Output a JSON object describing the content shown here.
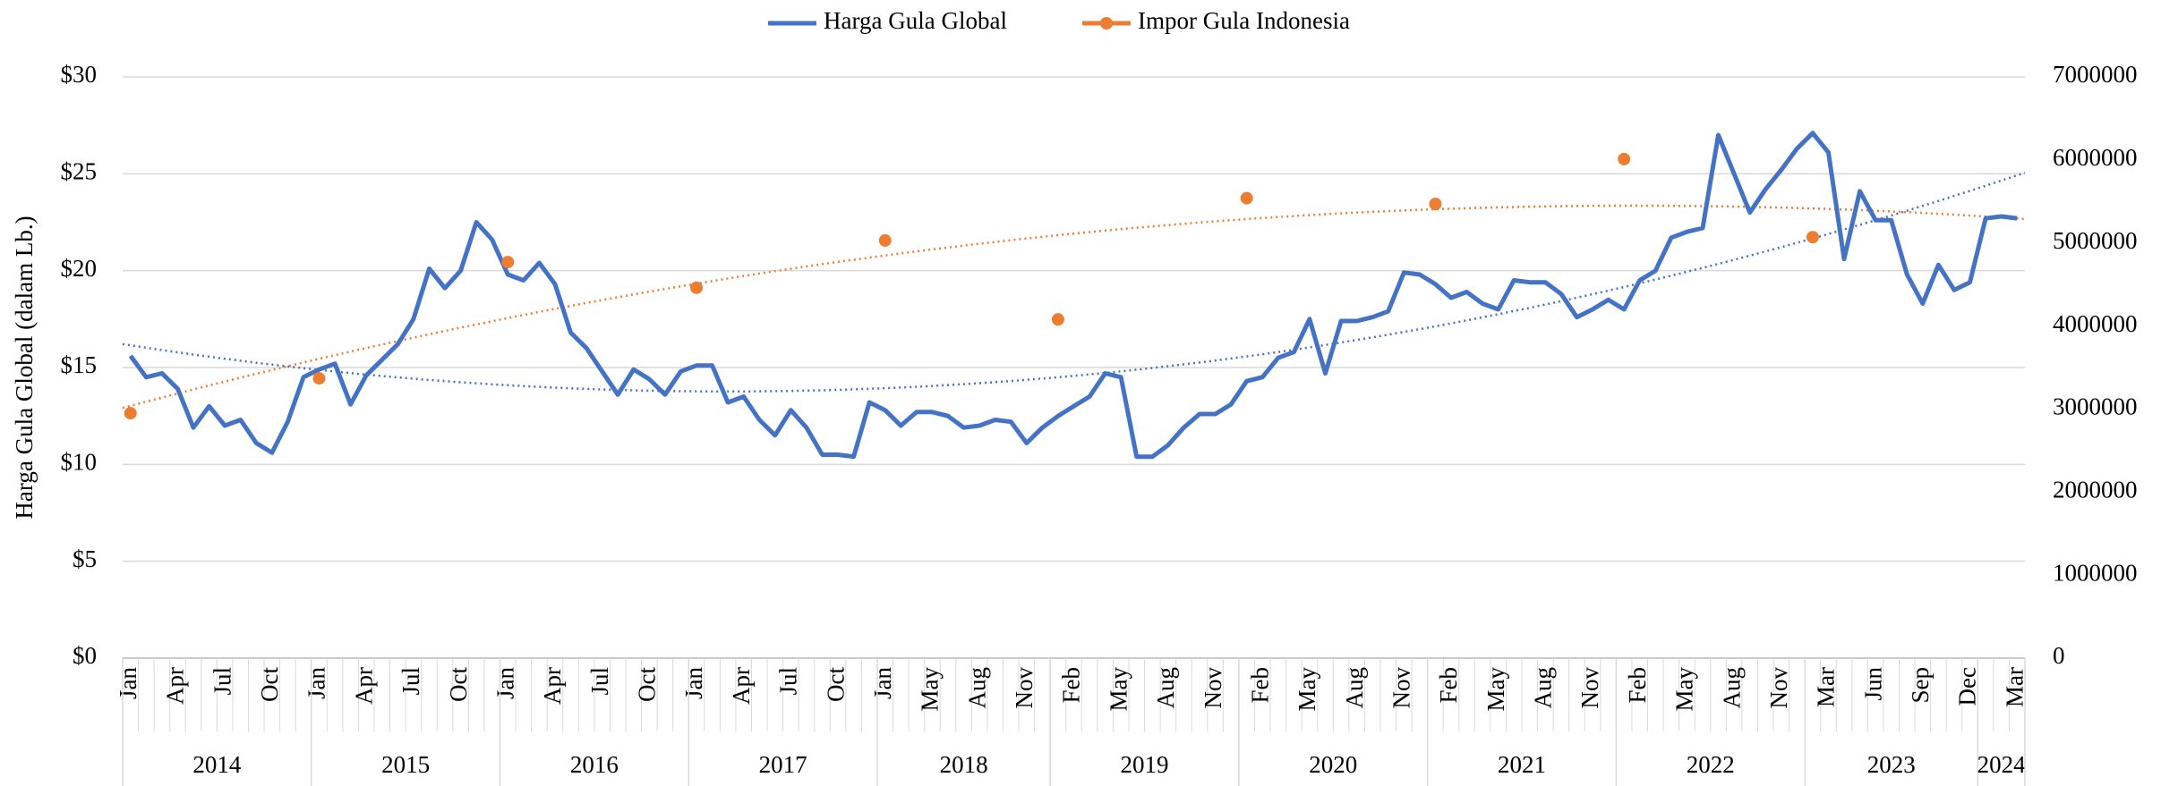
{
  "chart_data": {
    "type": "line",
    "ylabel": "Harga Gula Global (dalam Lb.)",
    "categories": [
      "Jan",
      null,
      null,
      "Apr",
      null,
      null,
      "Jul",
      null,
      null,
      "Oct",
      null,
      null,
      "Jan",
      null,
      null,
      "Apr",
      null,
      null,
      "Jul",
      null,
      null,
      "Oct",
      null,
      null,
      "Jan",
      null,
      null,
      "Apr",
      null,
      null,
      "Jul",
      null,
      null,
      "Oct",
      null,
      null,
      "Jan",
      null,
      null,
      "Apr",
      null,
      null,
      "Jul",
      null,
      null,
      "Oct",
      null,
      null,
      "Jan",
      null,
      null,
      "May",
      null,
      null,
      "Aug",
      null,
      null,
      "Nov",
      null,
      null,
      "Feb",
      null,
      null,
      "May",
      null,
      null,
      "Aug",
      null,
      null,
      "Nov",
      null,
      null,
      "Feb",
      null,
      null,
      "May",
      null,
      null,
      "Aug",
      null,
      null,
      "Nov",
      null,
      null,
      "Feb",
      null,
      null,
      "May",
      null,
      null,
      "Aug",
      null,
      null,
      "Nov",
      null,
      null,
      "Feb",
      null,
      null,
      "May",
      null,
      null,
      "Aug",
      null,
      null,
      "Nov",
      null,
      null,
      "Mar",
      null,
      null,
      "Jun",
      null,
      null,
      "Sep",
      null,
      null,
      "Dec",
      null,
      null,
      "Mar"
    ],
    "x_groups": [
      {
        "label": "2014",
        "count": 12
      },
      {
        "label": "2015",
        "count": 12
      },
      {
        "label": "2016",
        "count": 12
      },
      {
        "label": "2017",
        "count": 12
      },
      {
        "label": "2018",
        "count": 11
      },
      {
        "label": "2019",
        "count": 12
      },
      {
        "label": "2020",
        "count": 12
      },
      {
        "label": "2021",
        "count": 12
      },
      {
        "label": "2022",
        "count": 12
      },
      {
        "label": "2023",
        "count": 11
      },
      {
        "label": "2024",
        "count": 3
      }
    ],
    "series": [
      {
        "name": "Harga Gula Global",
        "color": "#4472c4",
        "type": "line",
        "trendline": {
          "type": "polynomial",
          "order": 2
        },
        "values": [
          15.6,
          14.5,
          14.7,
          13.9,
          11.9,
          13.0,
          12.0,
          12.3,
          11.1,
          10.6,
          12.2,
          14.5,
          14.9,
          15.2,
          13.1,
          14.6,
          15.4,
          16.2,
          17.5,
          20.1,
          19.1,
          20.0,
          22.5,
          21.6,
          19.8,
          19.5,
          20.4,
          19.3,
          16.8,
          16.0,
          14.8,
          13.6,
          14.9,
          14.4,
          13.6,
          14.8,
          15.1,
          15.1,
          13.2,
          13.5,
          12.3,
          11.5,
          12.8,
          11.9,
          10.5,
          10.5,
          10.4,
          13.2,
          12.8,
          12.0,
          12.7,
          12.7,
          12.5,
          11.9,
          12.0,
          12.3,
          12.2,
          11.1,
          11.9,
          12.5,
          13.0,
          13.5,
          14.7,
          14.5,
          10.4,
          10.4,
          11.0,
          11.9,
          12.6,
          12.6,
          13.1,
          14.3,
          14.5,
          15.5,
          15.8,
          17.5,
          14.7,
          17.4,
          17.4,
          17.6,
          17.9,
          19.9,
          19.8,
          19.3,
          18.6,
          18.9,
          18.3,
          18.0,
          19.5,
          19.4,
          19.4,
          18.8,
          17.6,
          18.0,
          18.5,
          18.0,
          19.5,
          20.0,
          21.7,
          22.0,
          22.2,
          27.0,
          25.0,
          23.0,
          24.2,
          25.2,
          26.3,
          27.1,
          26.1,
          20.6,
          24.1,
          22.6,
          22.6,
          19.8,
          18.3,
          20.3,
          19.0,
          19.4,
          22.7,
          22.8,
          22.7
        ]
      },
      {
        "name": "Impor Gula Indonesia",
        "color": "#ed7d31",
        "type": "scatter",
        "axis": "y2",
        "trendline": {
          "type": "polynomial",
          "order": 2
        },
        "values": [
          2950000,
          null,
          null,
          null,
          null,
          null,
          null,
          null,
          null,
          null,
          null,
          null,
          3370000,
          null,
          null,
          null,
          null,
          null,
          null,
          null,
          null,
          null,
          null,
          null,
          4770000,
          null,
          null,
          null,
          null,
          null,
          null,
          null,
          null,
          null,
          null,
          null,
          4460000,
          null,
          null,
          null,
          null,
          null,
          null,
          null,
          null,
          null,
          null,
          null,
          5030000,
          null,
          null,
          null,
          null,
          null,
          null,
          null,
          null,
          null,
          null,
          4080000,
          null,
          null,
          null,
          null,
          null,
          null,
          null,
          null,
          null,
          null,
          null,
          5540000,
          null,
          null,
          null,
          null,
          null,
          null,
          null,
          null,
          null,
          null,
          null,
          5470000,
          null,
          null,
          null,
          null,
          null,
          null,
          null,
          null,
          null,
          null,
          null,
          6010000,
          null,
          null,
          null,
          null,
          null,
          null,
          null,
          null,
          null,
          null,
          null,
          5070000,
          null,
          null,
          null,
          null,
          null,
          null,
          null,
          null,
          null,
          null,
          null,
          null,
          null
        ]
      }
    ],
    "ylim": [
      0,
      30
    ],
    "yticks": [
      {
        "value": 0,
        "label": "$0"
      },
      {
        "value": 5,
        "label": "$5"
      },
      {
        "value": 10,
        "label": "$10"
      },
      {
        "value": 15,
        "label": "$15"
      },
      {
        "value": 20,
        "label": "$20"
      },
      {
        "value": 25,
        "label": "$25"
      },
      {
        "value": 30,
        "label": "$30"
      }
    ],
    "y2lim": [
      0,
      7000000
    ],
    "y2ticks": [
      0,
      1000000,
      2000000,
      3000000,
      4000000,
      5000000,
      6000000,
      7000000
    ],
    "grid": true,
    "legend": "top"
  }
}
